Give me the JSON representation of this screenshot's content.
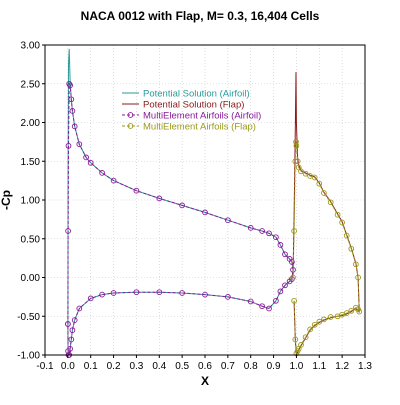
{
  "chart_data": {
    "type": "line",
    "title": "NACA 0012 with Flap, M= 0.3, 16,404 Cells",
    "xlabel": "X",
    "ylabel": "-Cp",
    "xlim": [
      -0.1,
      1.3
    ],
    "ylim": [
      -1.0,
      3.0
    ],
    "x_ticks": [
      "-0.1",
      "0.0",
      "0.1",
      "0.2",
      "0.3",
      "0.4",
      "0.5",
      "0.6",
      "0.7",
      "0.8",
      "0.9",
      "1.0",
      "1.1",
      "1.2",
      "1.3"
    ],
    "y_ticks": [
      "-1.00",
      "-0.50",
      "0.00",
      "0.50",
      "1.00",
      "1.50",
      "2.00",
      "2.50",
      "3.00"
    ],
    "grid": true,
    "legend_position": "upper-center",
    "series": [
      {
        "name": "Potential Solution (Airfoil)",
        "color": "#2a9a9a",
        "marker": "none",
        "line": "solid",
        "x": [
          0.0,
          0.001,
          0.003,
          0.006,
          0.01,
          0.015,
          0.02,
          0.03,
          0.05,
          0.08,
          0.1,
          0.15,
          0.2,
          0.3,
          0.4,
          0.5,
          0.6,
          0.7,
          0.8,
          0.85,
          0.88,
          0.91,
          0.93,
          0.95,
          0.97,
          0.98,
          0.985,
          0.98,
          0.97,
          0.95,
          0.93,
          0.91,
          0.88,
          0.85,
          0.8,
          0.7,
          0.6,
          0.5,
          0.4,
          0.3,
          0.2,
          0.15,
          0.1,
          0.05,
          0.03,
          0.02,
          0.015,
          0.01,
          0.006,
          0.003,
          0.001,
          0.0
        ],
        "y": [
          -0.8,
          1.5,
          2.75,
          2.95,
          2.55,
          2.3,
          2.15,
          1.95,
          1.72,
          1.55,
          1.48,
          1.35,
          1.25,
          1.12,
          1.02,
          0.93,
          0.84,
          0.74,
          0.64,
          0.6,
          0.57,
          0.52,
          0.42,
          0.3,
          0.24,
          0.2,
          0.1,
          -0.02,
          -0.05,
          -0.1,
          -0.18,
          -0.3,
          -0.4,
          -0.37,
          -0.31,
          -0.25,
          -0.22,
          -0.2,
          -0.19,
          -0.19,
          -0.2,
          -0.22,
          -0.27,
          -0.4,
          -0.55,
          -0.68,
          -0.8,
          -0.92,
          -1.0,
          -1.0,
          -0.95,
          -0.8
        ]
      },
      {
        "name": "Potential Solution (Flap)",
        "color": "#8a1a1a",
        "marker": "none",
        "line": "solid",
        "x": [
          0.985,
          0.99,
          0.995,
          0.998,
          1.0,
          1.005,
          1.01,
          1.02,
          1.04,
          1.06,
          1.08,
          1.1,
          1.12,
          1.15,
          1.18,
          1.2,
          1.22,
          1.24,
          1.26,
          1.27,
          1.275,
          1.27,
          1.26,
          1.24,
          1.22,
          1.2,
          1.18,
          1.15,
          1.12,
          1.1,
          1.08,
          1.06,
          1.04,
          1.02,
          1.01,
          1.005,
          1.0,
          0.995,
          0.99
        ],
        "y": [
          0.0,
          0.8,
          1.9,
          2.65,
          2.0,
          1.55,
          1.45,
          1.38,
          1.35,
          1.32,
          1.3,
          1.22,
          1.1,
          0.98,
          0.82,
          0.72,
          0.55,
          0.38,
          0.18,
          0.0,
          -0.45,
          -0.42,
          -0.4,
          -0.44,
          -0.47,
          -0.49,
          -0.5,
          -0.52,
          -0.55,
          -0.58,
          -0.62,
          -0.68,
          -0.78,
          -0.88,
          -0.93,
          -0.96,
          -1.0,
          -0.8,
          -0.3
        ]
      },
      {
        "name": "MultiElement Airfoils (Airfoil)",
        "color": "#8a1a9a",
        "marker": "circle",
        "line": "dashed",
        "x": [
          0.0,
          0.001,
          0.003,
          0.006,
          0.01,
          0.015,
          0.02,
          0.03,
          0.05,
          0.08,
          0.1,
          0.15,
          0.2,
          0.3,
          0.4,
          0.5,
          0.6,
          0.7,
          0.8,
          0.85,
          0.88,
          0.91,
          0.93,
          0.95,
          0.97,
          0.98,
          0.985,
          0.98,
          0.97,
          0.95,
          0.93,
          0.91,
          0.88,
          0.85,
          0.8,
          0.7,
          0.6,
          0.5,
          0.4,
          0.3,
          0.2,
          0.15,
          0.1,
          0.05,
          0.03,
          0.02,
          0.015,
          0.01,
          0.006,
          0.003,
          0.001,
          0.0
        ],
        "y": [
          -0.6,
          0.6,
          1.7,
          2.5,
          2.48,
          2.3,
          2.15,
          1.95,
          1.72,
          1.55,
          1.48,
          1.35,
          1.25,
          1.12,
          1.02,
          0.93,
          0.84,
          0.74,
          0.64,
          0.6,
          0.57,
          0.52,
          0.42,
          0.3,
          0.24,
          0.2,
          0.1,
          -0.02,
          -0.05,
          -0.1,
          -0.18,
          -0.3,
          -0.4,
          -0.37,
          -0.31,
          -0.25,
          -0.22,
          -0.2,
          -0.19,
          -0.19,
          -0.2,
          -0.22,
          -0.27,
          -0.4,
          -0.55,
          -0.68,
          -0.8,
          -0.92,
          -1.0,
          -1.0,
          -0.95,
          -0.6
        ]
      },
      {
        "name": "MultiElement Airfoils (Flap)",
        "color": "#9a9a1a",
        "marker": "circle",
        "line": "dashed",
        "x": [
          0.985,
          0.99,
          0.995,
          0.998,
          1.0,
          1.005,
          1.01,
          1.02,
          1.04,
          1.06,
          1.08,
          1.1,
          1.12,
          1.15,
          1.18,
          1.2,
          1.22,
          1.24,
          1.26,
          1.27,
          1.275,
          1.27,
          1.26,
          1.24,
          1.22,
          1.2,
          1.18,
          1.15,
          1.12,
          1.1,
          1.08,
          1.06,
          1.04,
          1.02,
          1.01,
          1.005,
          1.0,
          0.995,
          0.99
        ],
        "y": [
          0.0,
          0.6,
          1.5,
          1.75,
          1.7,
          1.5,
          1.42,
          1.37,
          1.34,
          1.31,
          1.29,
          1.21,
          1.09,
          0.97,
          0.81,
          0.71,
          0.54,
          0.37,
          0.17,
          0.0,
          -0.44,
          -0.41,
          -0.39,
          -0.43,
          -0.46,
          -0.48,
          -0.5,
          -0.51,
          -0.54,
          -0.57,
          -0.61,
          -0.67,
          -0.77,
          -0.87,
          -0.92,
          -0.95,
          -0.98,
          -0.8,
          -0.3
        ]
      }
    ]
  }
}
